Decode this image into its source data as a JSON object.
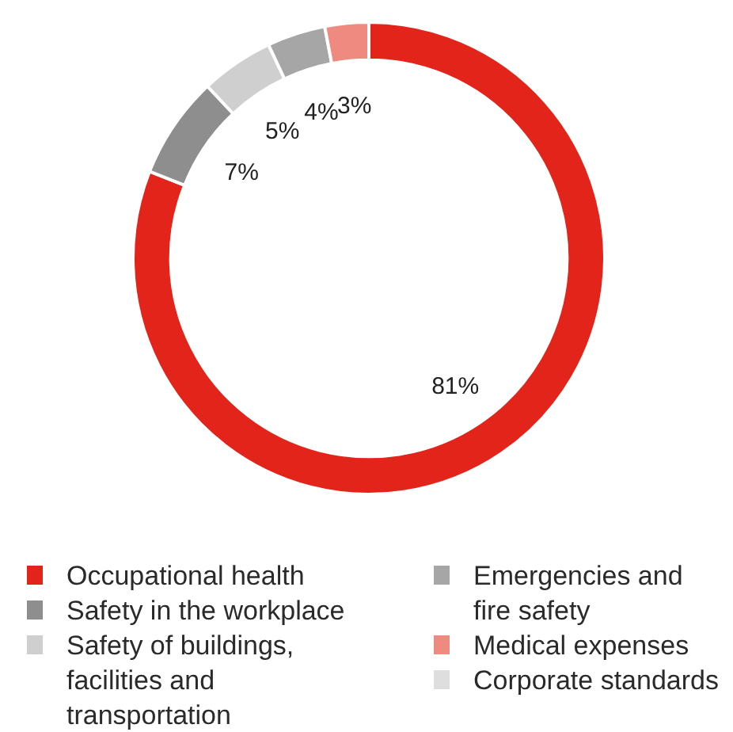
{
  "chart_data": {
    "type": "donut",
    "categories": [
      "Occupational health",
      "Safety in the workplace",
      "Safety of buildings, facilities and transportation",
      "Emergencies and fire safety",
      "Medical expenses",
      "Corporate standards"
    ],
    "values": [
      81,
      7,
      5,
      4,
      3,
      null
    ],
    "value_labels": [
      "81%",
      "7%",
      "5%",
      "4%",
      "3%",
      null
    ],
    "colors": [
      "#e3241b",
      "#8e8e8e",
      "#cfcfcf",
      "#a6a6a6",
      "#ee8a80",
      "#dedede"
    ],
    "legend": "bottom"
  }
}
